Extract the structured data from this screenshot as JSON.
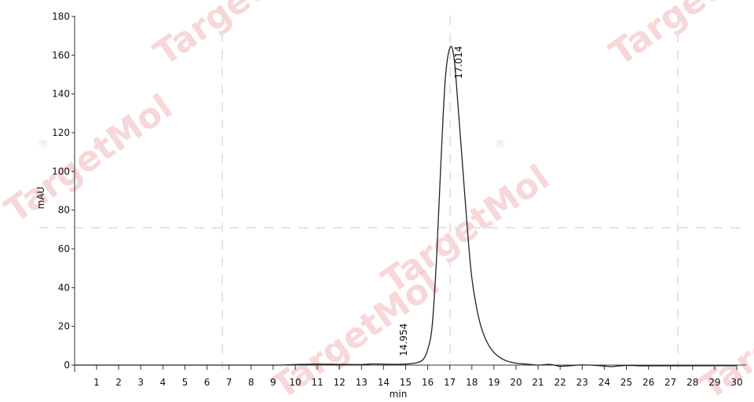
{
  "chart_data": {
    "type": "line",
    "xlabel": "min",
    "ylabel": "mAU",
    "xlim": [
      0,
      30.5
    ],
    "ylim": [
      -3,
      181
    ],
    "x_ticks": [
      1,
      2,
      3,
      4,
      5,
      6,
      7,
      8,
      9,
      10,
      11,
      12,
      13,
      14,
      15,
      16,
      17,
      18,
      19,
      20,
      21,
      22,
      23,
      24,
      25,
      26,
      27,
      28,
      29,
      30
    ],
    "y_ticks": [
      0,
      20,
      40,
      60,
      80,
      100,
      120,
      140,
      160,
      180
    ],
    "grid": false,
    "legend": "none",
    "line_color": "#222222",
    "series": [
      {
        "x": [
          0.0,
          5.0,
          9.0,
          10.0,
          11.0,
          12.0,
          13.0,
          13.5,
          14.0,
          14.5,
          14.954,
          15.5,
          15.8,
          16.0,
          16.2,
          16.4,
          16.6,
          16.8,
          17.014,
          17.2,
          17.4,
          17.6,
          17.8,
          18.0,
          18.3,
          18.6,
          19.0,
          19.5,
          20.0,
          20.5,
          21.0,
          21.5,
          21.8,
          22.0,
          22.5,
          23.0,
          23.5,
          24.0,
          24.3,
          24.6,
          25.0,
          25.5,
          26.0,
          30.0
        ],
        "y": [
          0.0,
          0.0,
          0.0,
          0.3,
          0.5,
          0.4,
          0.3,
          0.6,
          0.5,
          0.4,
          0.5,
          1.2,
          3.0,
          8.0,
          20.0,
          55.0,
          105.0,
          148.0,
          164.0,
          158.0,
          130.0,
          100.0,
          70.0,
          45.0,
          25.0,
          14.0,
          6.5,
          2.5,
          1.0,
          0.5,
          0.0,
          0.4,
          -0.2,
          -0.6,
          -0.3,
          0.1,
          -0.1,
          -0.5,
          -0.8,
          -0.5,
          -0.2,
          -0.3,
          -0.4,
          -0.3
        ]
      }
    ],
    "peaks": [
      {
        "x": 14.954,
        "y": 0.5,
        "label": "14.954"
      },
      {
        "x": 17.014,
        "y": 164.0,
        "label": "17.014"
      }
    ],
    "watermark": {
      "text": "TargetMol",
      "symbol": "®"
    }
  }
}
